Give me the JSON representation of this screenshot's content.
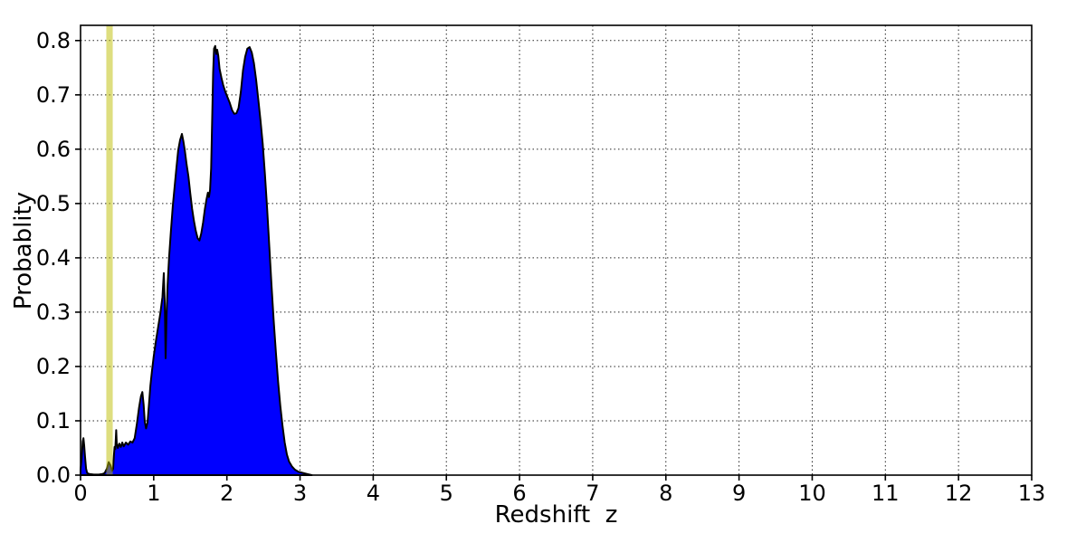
{
  "figure": {
    "background": "#ffffff",
    "frame_color": "#000000"
  },
  "chart_data": {
    "type": "area",
    "title": "",
    "xlabel": "Redshift  z",
    "ylabel": "Probablity",
    "xlim": [
      0,
      13
    ],
    "ylim": [
      0,
      0.828
    ],
    "xticks": [
      "0",
      "1",
      "2",
      "3",
      "4",
      "5",
      "6",
      "7",
      "8",
      "9",
      "10",
      "11",
      "12",
      "13"
    ],
    "xtick_values": [
      0,
      1,
      2,
      3,
      4,
      5,
      6,
      7,
      8,
      9,
      10,
      11,
      12,
      13
    ],
    "yticks": [
      "0.0",
      "0.1",
      "0.2",
      "0.3",
      "0.4",
      "0.5",
      "0.6",
      "0.7",
      "0.8"
    ],
    "ytick_values": [
      0.0,
      0.1,
      0.2,
      0.3,
      0.4,
      0.5,
      0.6,
      0.7,
      0.8
    ],
    "grid": {
      "visible": true,
      "style": "dotted",
      "color": "#000000"
    },
    "legend": {
      "visible": false
    },
    "colors": {
      "area_fill": "#0000ff",
      "area_edge": "#000000",
      "vspan": "#bebe00"
    },
    "vspan": {
      "z_min": 0.352,
      "z_max": 0.44,
      "opacity": 0.5
    },
    "series": {
      "points": [
        [
          0.0,
          0.01
        ],
        [
          0.015,
          0.03
        ],
        [
          0.03,
          0.062
        ],
        [
          0.04,
          0.068
        ],
        [
          0.05,
          0.055
        ],
        [
          0.06,
          0.035
        ],
        [
          0.075,
          0.012
        ],
        [
          0.09,
          0.004
        ],
        [
          0.12,
          0.002
        ],
        [
          0.18,
          0.001
        ],
        [
          0.25,
          0.001
        ],
        [
          0.3,
          0.002
        ],
        [
          0.33,
          0.004
        ],
        [
          0.36,
          0.012
        ],
        [
          0.385,
          0.024
        ],
        [
          0.41,
          0.018
        ],
        [
          0.43,
          0.008
        ],
        [
          0.445,
          0.012
        ],
        [
          0.455,
          0.035
        ],
        [
          0.465,
          0.052
        ],
        [
          0.475,
          0.048
        ],
        [
          0.487,
          0.083
        ],
        [
          0.495,
          0.058
        ],
        [
          0.51,
          0.05
        ],
        [
          0.53,
          0.058
        ],
        [
          0.55,
          0.052
        ],
        [
          0.57,
          0.06
        ],
        [
          0.59,
          0.053
        ],
        [
          0.62,
          0.06
        ],
        [
          0.65,
          0.056
        ],
        [
          0.68,
          0.062
        ],
        [
          0.71,
          0.06
        ],
        [
          0.74,
          0.068
        ],
        [
          0.77,
          0.095
        ],
        [
          0.8,
          0.125
        ],
        [
          0.825,
          0.145
        ],
        [
          0.845,
          0.153
        ],
        [
          0.862,
          0.13
        ],
        [
          0.878,
          0.098
        ],
        [
          0.895,
          0.086
        ],
        [
          0.915,
          0.097
        ],
        [
          0.935,
          0.13
        ],
        [
          0.955,
          0.165
        ],
        [
          0.975,
          0.19
        ],
        [
          1.0,
          0.218
        ],
        [
          1.03,
          0.247
        ],
        [
          1.06,
          0.272
        ],
        [
          1.09,
          0.297
        ],
        [
          1.12,
          0.328
        ],
        [
          1.138,
          0.372
        ],
        [
          1.152,
          0.315
        ],
        [
          1.163,
          0.215
        ],
        [
          1.175,
          0.29
        ],
        [
          1.19,
          0.35
        ],
        [
          1.21,
          0.4
        ],
        [
          1.235,
          0.448
        ],
        [
          1.26,
          0.495
        ],
        [
          1.285,
          0.53
        ],
        [
          1.31,
          0.565
        ],
        [
          1.335,
          0.598
        ],
        [
          1.36,
          0.617
        ],
        [
          1.385,
          0.628
        ],
        [
          1.405,
          0.615
        ],
        [
          1.425,
          0.598
        ],
        [
          1.45,
          0.572
        ],
        [
          1.475,
          0.55
        ],
        [
          1.5,
          0.518
        ],
        [
          1.525,
          0.49
        ],
        [
          1.55,
          0.468
        ],
        [
          1.575,
          0.45
        ],
        [
          1.6,
          0.436
        ],
        [
          1.625,
          0.432
        ],
        [
          1.65,
          0.445
        ],
        [
          1.675,
          0.465
        ],
        [
          1.7,
          0.49
        ],
        [
          1.72,
          0.507
        ],
        [
          1.74,
          0.52
        ],
        [
          1.755,
          0.512
        ],
        [
          1.77,
          0.525
        ],
        [
          1.785,
          0.565
        ],
        [
          1.8,
          0.66
        ],
        [
          1.812,
          0.74
        ],
        [
          1.825,
          0.785
        ],
        [
          1.84,
          0.79
        ],
        [
          1.855,
          0.775
        ],
        [
          1.868,
          0.783
        ],
        [
          1.882,
          0.772
        ],
        [
          1.9,
          0.748
        ],
        [
          1.925,
          0.732
        ],
        [
          1.95,
          0.718
        ],
        [
          1.98,
          0.705
        ],
        [
          2.01,
          0.695
        ],
        [
          2.04,
          0.685
        ],
        [
          2.07,
          0.672
        ],
        [
          2.1,
          0.665
        ],
        [
          2.13,
          0.666
        ],
        [
          2.16,
          0.676
        ],
        [
          2.19,
          0.705
        ],
        [
          2.22,
          0.745
        ],
        [
          2.25,
          0.77
        ],
        [
          2.28,
          0.785
        ],
        [
          2.31,
          0.788
        ],
        [
          2.34,
          0.778
        ],
        [
          2.37,
          0.758
        ],
        [
          2.4,
          0.728
        ],
        [
          2.43,
          0.69
        ],
        [
          2.46,
          0.652
        ],
        [
          2.49,
          0.61
        ],
        [
          2.52,
          0.555
        ],
        [
          2.55,
          0.49
        ],
        [
          2.58,
          0.42
        ],
        [
          2.61,
          0.35
        ],
        [
          2.64,
          0.285
        ],
        [
          2.67,
          0.225
        ],
        [
          2.7,
          0.172
        ],
        [
          2.73,
          0.128
        ],
        [
          2.76,
          0.092
        ],
        [
          2.79,
          0.06
        ],
        [
          2.82,
          0.038
        ],
        [
          2.85,
          0.025
        ],
        [
          2.89,
          0.016
        ],
        [
          2.93,
          0.01
        ],
        [
          2.98,
          0.006
        ],
        [
          3.04,
          0.004
        ],
        [
          3.1,
          0.002
        ],
        [
          3.16,
          0.0
        ]
      ]
    }
  }
}
